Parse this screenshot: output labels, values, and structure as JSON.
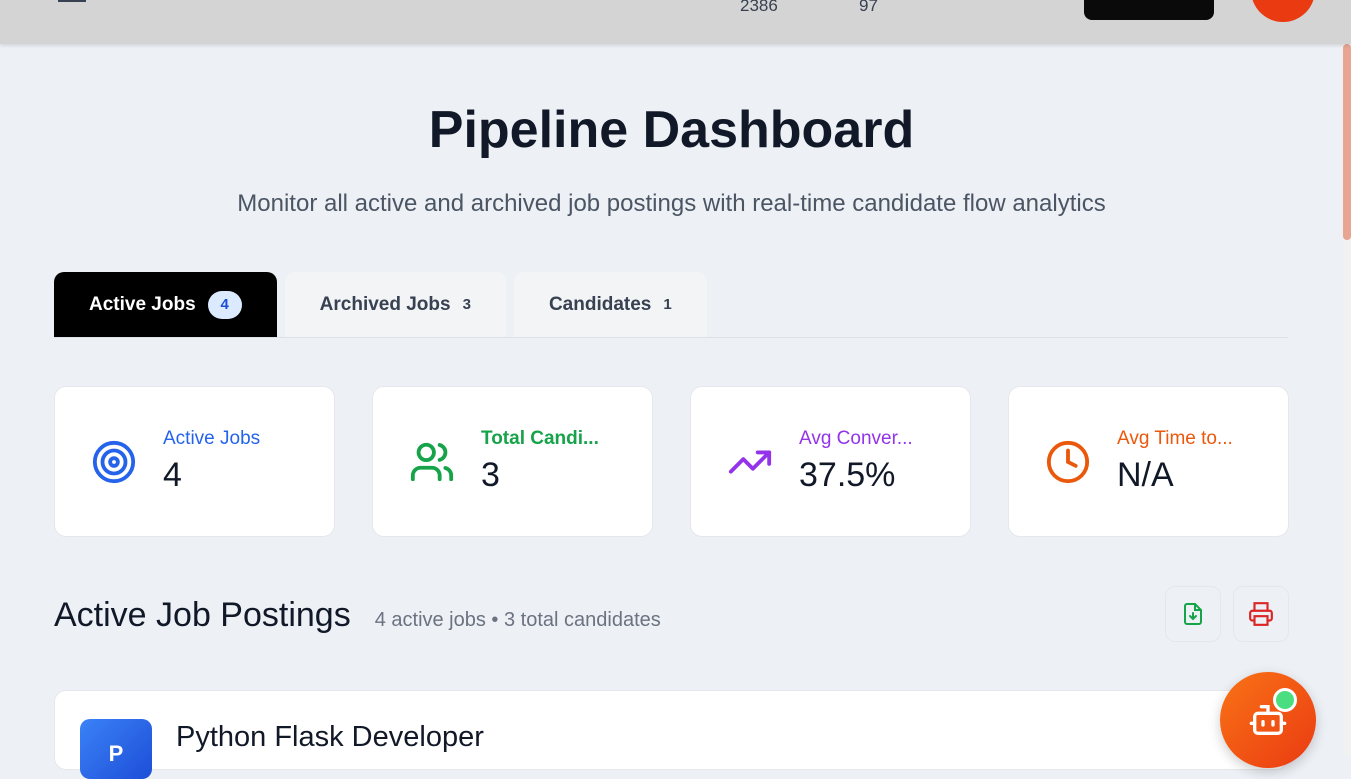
{
  "header": {
    "stat_1": "2386",
    "stat_2": "97"
  },
  "page": {
    "title": "Pipeline Dashboard",
    "subtitle": "Monitor all active and archived job postings with real-time candidate flow analytics"
  },
  "tabs": [
    {
      "label": "Active Jobs",
      "count": "4"
    },
    {
      "label": "Archived Jobs",
      "count": "3"
    },
    {
      "label": "Candidates",
      "count": "1"
    }
  ],
  "cards": [
    {
      "label": "Active Jobs",
      "value": "4",
      "color": "#2563eb",
      "icon": "target-icon"
    },
    {
      "label": "Total Candi...",
      "value": "3",
      "color": "#16a34a",
      "icon": "users-icon"
    },
    {
      "label": "Avg Conver...",
      "value": "37.5%",
      "color": "#9333ea",
      "icon": "trending-up-icon"
    },
    {
      "label": "Avg Time to...",
      "value": "N/A",
      "color": "#ea580c",
      "icon": "clock-icon"
    }
  ],
  "section": {
    "title": "Active Job Postings",
    "summary": "4 active jobs • 3 total candidates"
  },
  "jobs": [
    {
      "logo_letter": "P",
      "title": "Python Flask Developer"
    }
  ]
}
